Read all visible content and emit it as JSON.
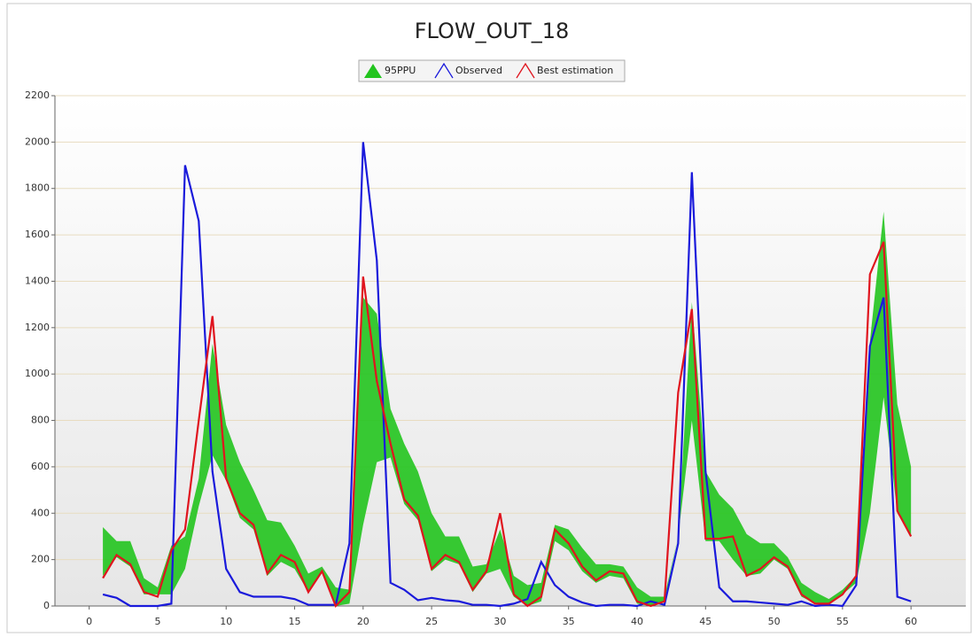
{
  "chart_data": {
    "type": "line",
    "title": "FLOW_OUT_18",
    "x": [
      1,
      2,
      3,
      4,
      5,
      6,
      7,
      8,
      9,
      10,
      11,
      12,
      13,
      14,
      15,
      16,
      17,
      18,
      19,
      20,
      21,
      22,
      23,
      24,
      25,
      26,
      27,
      28,
      29,
      30,
      31,
      32,
      33,
      34,
      35,
      36,
      37,
      38,
      39,
      40,
      41,
      42,
      43,
      44,
      45,
      46,
      47,
      48,
      49,
      50,
      51,
      52,
      53,
      54,
      55,
      56,
      57,
      58,
      59,
      60
    ],
    "series": [
      {
        "name": "95PPU",
        "color": "#22c41e",
        "upper": [
          340,
          280,
          280,
          120,
          80,
          260,
          300,
          550,
          1130,
          780,
          620,
          500,
          370,
          360,
          260,
          140,
          170,
          80,
          70,
          1330,
          1260,
          850,
          700,
          580,
          400,
          300,
          300,
          170,
          180,
          330,
          130,
          90,
          100,
          350,
          330,
          250,
          180,
          180,
          170,
          80,
          40,
          40,
          300,
          1310,
          580,
          480,
          420,
          310,
          270,
          270,
          210,
          100,
          60,
          30,
          70,
          130,
          1140,
          1700,
          870,
          600
        ],
        "lower": [
          130,
          210,
          170,
          50,
          50,
          50,
          160,
          430,
          650,
          540,
          380,
          330,
          130,
          190,
          160,
          60,
          150,
          0,
          10,
          350,
          620,
          640,
          440,
          370,
          150,
          200,
          180,
          60,
          140,
          160,
          40,
          0,
          20,
          280,
          240,
          150,
          100,
          130,
          120,
          10,
          0,
          20,
          300,
          800,
          280,
          280,
          200,
          130,
          140,
          200,
          160,
          40,
          10,
          10,
          50,
          100,
          400,
          900,
          400,
          300
        ]
      },
      {
        "name": "Observed",
        "color": "#1a1adb",
        "values": [
          50,
          35,
          0,
          0,
          0,
          10,
          1900,
          1660,
          580,
          160,
          60,
          40,
          40,
          40,
          30,
          5,
          5,
          5,
          270,
          2000,
          1490,
          100,
          70,
          25,
          35,
          25,
          20,
          5,
          5,
          0,
          10,
          30,
          190,
          90,
          40,
          15,
          0,
          5,
          5,
          0,
          20,
          5,
          270,
          1870,
          580,
          80,
          20,
          20,
          15,
          10,
          5,
          20,
          0,
          5,
          0,
          90,
          1120,
          1330,
          40,
          20
        ]
      },
      {
        "name": "Best estimation",
        "color": "#e0141e",
        "values": [
          120,
          220,
          180,
          60,
          40,
          240,
          330,
          800,
          1250,
          550,
          400,
          350,
          140,
          220,
          190,
          60,
          150,
          0,
          60,
          1420,
          970,
          700,
          460,
          390,
          160,
          220,
          190,
          70,
          150,
          400,
          50,
          0,
          40,
          330,
          270,
          170,
          110,
          150,
          140,
          20,
          0,
          20,
          920,
          1280,
          290,
          290,
          300,
          130,
          160,
          210,
          170,
          50,
          10,
          10,
          50,
          130,
          1430,
          1570,
          410,
          300
        ]
      }
    ],
    "xlim": [
      -2.5,
      64
    ],
    "xticks": [
      0,
      5,
      10,
      15,
      20,
      25,
      30,
      35,
      40,
      45,
      50,
      55,
      60
    ],
    "ylim": [
      0,
      2200
    ],
    "yticks": [
      0,
      200,
      400,
      600,
      800,
      1000,
      1200,
      1400,
      1600,
      1800,
      2000,
      2200
    ],
    "grid": true,
    "legend": "top"
  }
}
